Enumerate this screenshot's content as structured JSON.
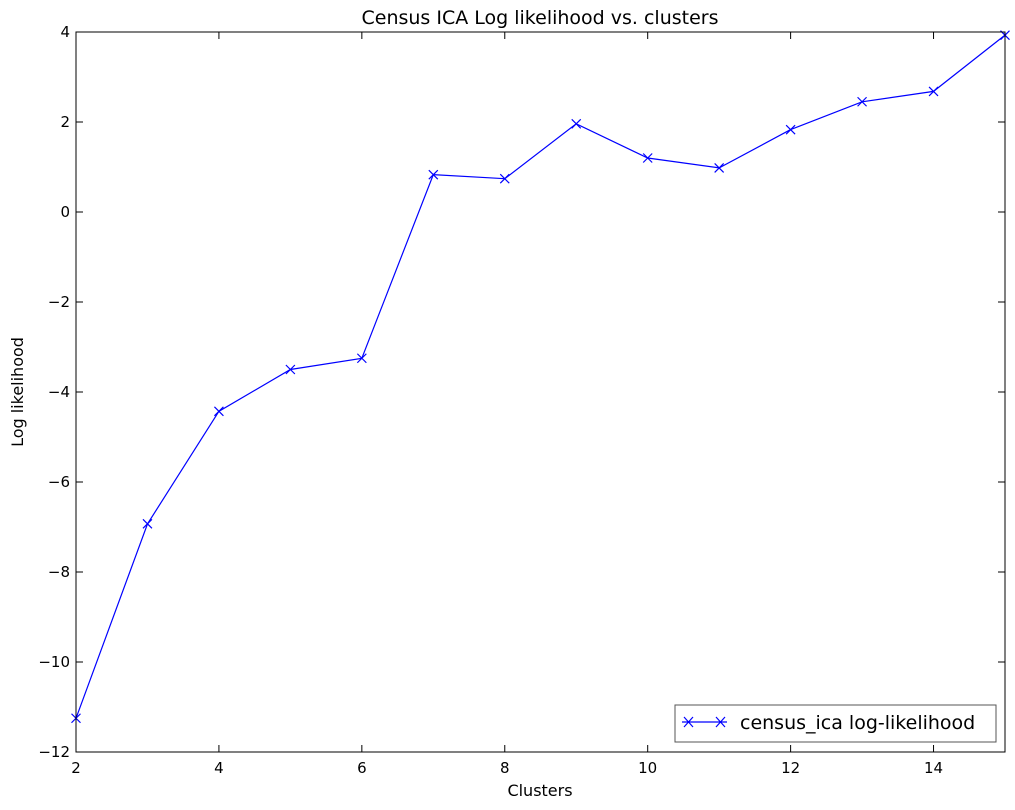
{
  "chart_data": {
    "type": "line",
    "title": "Census ICA Log likelihood vs. clusters",
    "xlabel": "Clusters",
    "ylabel": "Log likelihood",
    "xlim": [
      2,
      15
    ],
    "ylim": [
      -12,
      4
    ],
    "xticks": [
      2,
      4,
      6,
      8,
      10,
      12,
      14
    ],
    "yticks": [
      -12,
      -10,
      -8,
      -6,
      -4,
      -2,
      0,
      2,
      4
    ],
    "tick_labels": {
      "x": [
        "2",
        "4",
        "6",
        "8",
        "10",
        "12",
        "14"
      ],
      "y": [
        "−12",
        "−10",
        "−8",
        "−6",
        "−4",
        "−2",
        "0",
        "2",
        "4"
      ]
    },
    "grid": false,
    "legend_position": "lower-right",
    "series": [
      {
        "name": "census_ica log-likelihood",
        "color": "#0000ff",
        "marker": "x",
        "x": [
          2,
          3,
          4,
          5,
          6,
          7,
          8,
          9,
          10,
          11,
          12,
          13,
          14,
          15
        ],
        "y": [
          -11.25,
          -6.93,
          -4.43,
          -3.5,
          -3.25,
          0.83,
          0.74,
          1.96,
          1.2,
          0.98,
          1.83,
          2.45,
          2.68,
          3.93
        ]
      }
    ]
  }
}
